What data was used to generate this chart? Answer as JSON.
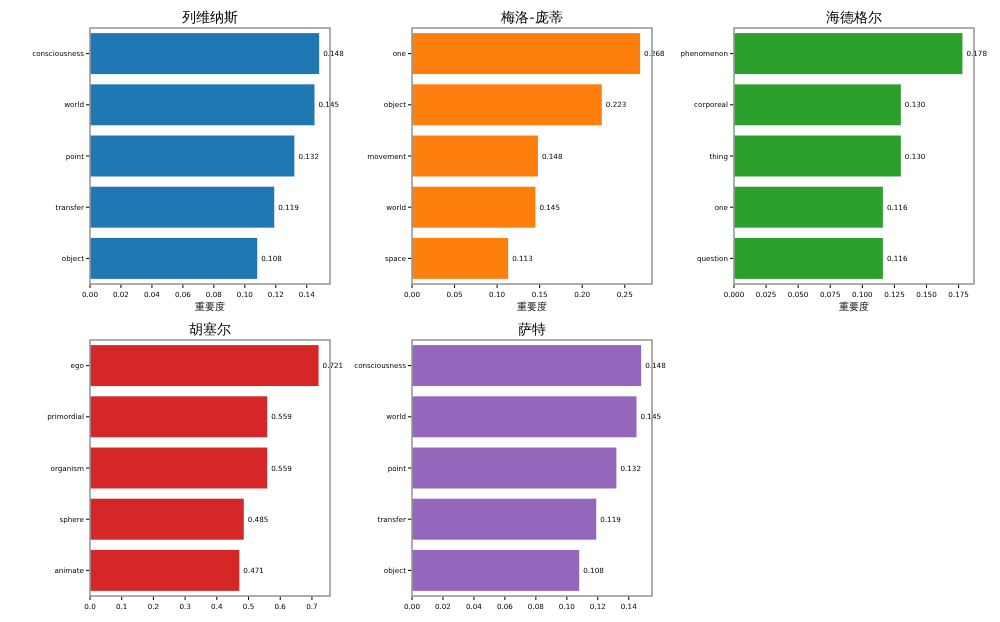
{
  "chart_data": [
    {
      "type": "bar",
      "orientation": "horizontal",
      "title": "列维纳斯",
      "xlabel": "重要度",
      "categories": [
        "consciousness",
        "world",
        "point",
        "transfer",
        "object"
      ],
      "series": [
        {
          "color": "#1f77b4",
          "values": [
            0.148,
            0.145,
            0.132,
            0.119,
            0.108
          ]
        }
      ],
      "xlim": [
        0,
        0.155
      ],
      "xticks": [
        {
          "value": 0,
          "label": "0.00"
        },
        {
          "value": 0.02,
          "label": "0.02"
        },
        {
          "value": 0.04,
          "label": "0.04"
        },
        {
          "value": 0.06,
          "label": "0.06"
        },
        {
          "value": 0.08,
          "label": "0.08"
        },
        {
          "value": 0.1,
          "label": "0.10"
        },
        {
          "value": 0.12,
          "label": "0.12"
        },
        {
          "value": 0.14,
          "label": "0.14"
        }
      ],
      "data_labels": true
    },
    {
      "type": "bar",
      "orientation": "horizontal",
      "title": "梅洛-庞蒂",
      "xlabel": "重要度",
      "categories": [
        "one",
        "object",
        "movement",
        "world",
        "space"
      ],
      "series": [
        {
          "color": "#ff7f0e",
          "values": [
            0.268,
            0.223,
            0.148,
            0.145,
            0.113
          ]
        }
      ],
      "xlim": [
        0,
        0.282
      ],
      "xticks": [
        {
          "value": 0,
          "label": "0.00"
        },
        {
          "value": 0.05,
          "label": "0.05"
        },
        {
          "value": 0.1,
          "label": "0.10"
        },
        {
          "value": 0.15,
          "label": "0.15"
        },
        {
          "value": 0.2,
          "label": "0.20"
        },
        {
          "value": 0.25,
          "label": "0.25"
        }
      ],
      "data_labels": true
    },
    {
      "type": "bar",
      "orientation": "horizontal",
      "title": "海德格尔",
      "xlabel": "重要度",
      "categories": [
        "phenomenon",
        "corporeal",
        "thing",
        "one",
        "question"
      ],
      "series": [
        {
          "color": "#2ca02c",
          "values": [
            0.178,
            0.13,
            0.13,
            0.116,
            0.116
          ]
        }
      ],
      "xlim": [
        0,
        0.187
      ],
      "xticks": [
        {
          "value": 0,
          "label": "0.000"
        },
        {
          "value": 0.025,
          "label": "0.025"
        },
        {
          "value": 0.05,
          "label": "0.050"
        },
        {
          "value": 0.075,
          "label": "0.075"
        },
        {
          "value": 0.1,
          "label": "0.100"
        },
        {
          "value": 0.125,
          "label": "0.125"
        },
        {
          "value": 0.15,
          "label": "0.150"
        },
        {
          "value": 0.175,
          "label": "0.175"
        }
      ],
      "value_labels": [
        "0.178",
        "0.130",
        "0.130",
        "0.116",
        "0.116"
      ]
    },
    {
      "type": "bar",
      "orientation": "horizontal",
      "title": "胡塞尔",
      "categories": [
        "ego",
        "primordial",
        "organism",
        "sphere",
        "animate"
      ],
      "series": [
        {
          "color": "#d62728",
          "values": [
            0.721,
            0.559,
            0.559,
            0.485,
            0.471
          ]
        }
      ],
      "xlim": [
        0,
        0.757
      ],
      "xticks": [
        {
          "value": 0,
          "label": "0.0"
        },
        {
          "value": 0.1,
          "label": "0.1"
        },
        {
          "value": 0.2,
          "label": "0.2"
        },
        {
          "value": 0.3,
          "label": "0.3"
        },
        {
          "value": 0.4,
          "label": "0.4"
        },
        {
          "value": 0.5,
          "label": "0.5"
        },
        {
          "value": 0.6,
          "label": "0.6"
        },
        {
          "value": 0.7,
          "label": "0.7"
        }
      ],
      "data_labels": true
    },
    {
      "type": "bar",
      "orientation": "horizontal",
      "title": "萨特",
      "categories": [
        "consciousness",
        "world",
        "point",
        "transfer",
        "object"
      ],
      "series": [
        {
          "color": "#9467bd",
          "values": [
            0.148,
            0.145,
            0.132,
            0.119,
            0.108
          ]
        }
      ],
      "xlim": [
        0,
        0.155
      ],
      "xticks": [
        {
          "value": 0,
          "label": "0.00"
        },
        {
          "value": 0.02,
          "label": "0.02"
        },
        {
          "value": 0.04,
          "label": "0.04"
        },
        {
          "value": 0.06,
          "label": "0.06"
        },
        {
          "value": 0.08,
          "label": "0.08"
        },
        {
          "value": 0.1,
          "label": "0.10"
        },
        {
          "value": 0.12,
          "label": "0.12"
        },
        {
          "value": 0.14,
          "label": "0.14"
        }
      ],
      "data_labels": true
    }
  ]
}
